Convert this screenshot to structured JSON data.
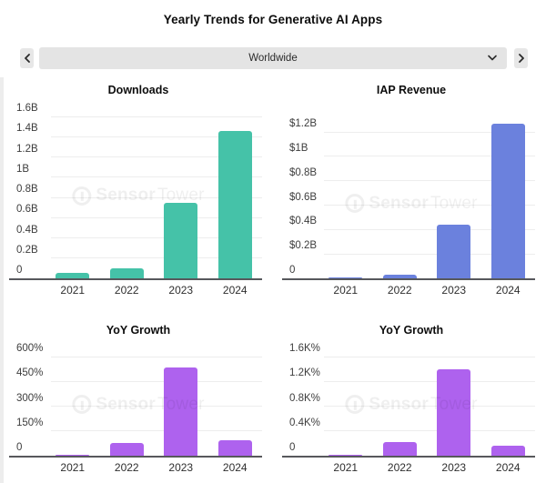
{
  "header": {
    "title": "Yearly Trends for Generative AI Apps",
    "region_selector": {
      "value": "Worldwide",
      "prev_icon": "chevron-left",
      "next_icon": "chevron-right",
      "open_icon": "chevron-down"
    }
  },
  "watermark": {
    "brand_bold": "Sensor",
    "brand_light": "Tower"
  },
  "colors": {
    "downloads_bar": "#45c2a8",
    "revenue_bar": "#6b81dd",
    "growth_bar": "#ae62ee",
    "gridline": "#ededed",
    "axis": "#57585c"
  },
  "chart_data": [
    {
      "type": "bar",
      "title": "Downloads",
      "categories": [
        "2021",
        "2022",
        "2023",
        "2024"
      ],
      "values": [
        0.05,
        0.1,
        0.75,
        1.46
      ],
      "unit": "B downloads",
      "y_ticks": [
        "1.6B",
        "1.4B",
        "1.2B",
        "1B",
        "0.8B",
        "0.6B",
        "0.4B",
        "0.2B",
        "0"
      ],
      "y_top_value": 1.6,
      "ylim": [
        0,
        1.6
      ],
      "xlabel": "",
      "ylabel": "",
      "grid": true,
      "legend": "none",
      "bar_color": "#45c2a8"
    },
    {
      "type": "bar",
      "title": "IAP Revenue",
      "categories": [
        "2021",
        "2022",
        "2023",
        "2024"
      ],
      "values": [
        0.01,
        0.03,
        0.44,
        1.27
      ],
      "unit": "$B",
      "y_ticks": [
        "$1.2B",
        "$1B",
        "$0.8B",
        "$0.6B",
        "$0.4B",
        "$0.2B",
        "0"
      ],
      "y_top_value": 1.2,
      "ylim": [
        0,
        1.2
      ],
      "xlabel": "",
      "ylabel": "",
      "grid": true,
      "legend": "none",
      "bar_color": "#6b81dd"
    },
    {
      "type": "bar",
      "title": "YoY Growth",
      "categories": [
        "2021",
        "2022",
        "2023",
        "2024"
      ],
      "values": [
        5,
        75,
        535,
        95
      ],
      "unit": "%",
      "y_ticks": [
        "600%",
        "450%",
        "300%",
        "150%",
        "0"
      ],
      "y_top_value": 600,
      "ylim": [
        0,
        600
      ],
      "xlabel": "",
      "ylabel": "",
      "grid": true,
      "legend": "none",
      "bar_color": "#ae62ee"
    },
    {
      "type": "bar",
      "title": "YoY Growth",
      "categories": [
        "2021",
        "2022",
        "2023",
        "2024"
      ],
      "values": [
        15,
        215,
        1400,
        160
      ],
      "unit": "%",
      "y_ticks": [
        "1.6K%",
        "1.2K%",
        "0.8K%",
        "0.4K%",
        "0"
      ],
      "y_top_value": 1600,
      "ylim": [
        0,
        1600
      ],
      "xlabel": "",
      "ylabel": "",
      "grid": true,
      "legend": "none",
      "bar_color": "#ae62ee"
    }
  ]
}
